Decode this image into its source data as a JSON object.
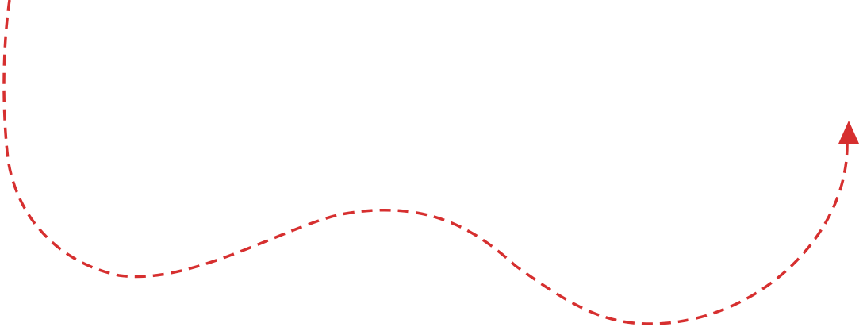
{
  "diagram": {
    "element": "dashed-curved-arrow",
    "stroke_color": "#d62f2f",
    "arrowhead": "triangle",
    "line_style": "dashed"
  }
}
